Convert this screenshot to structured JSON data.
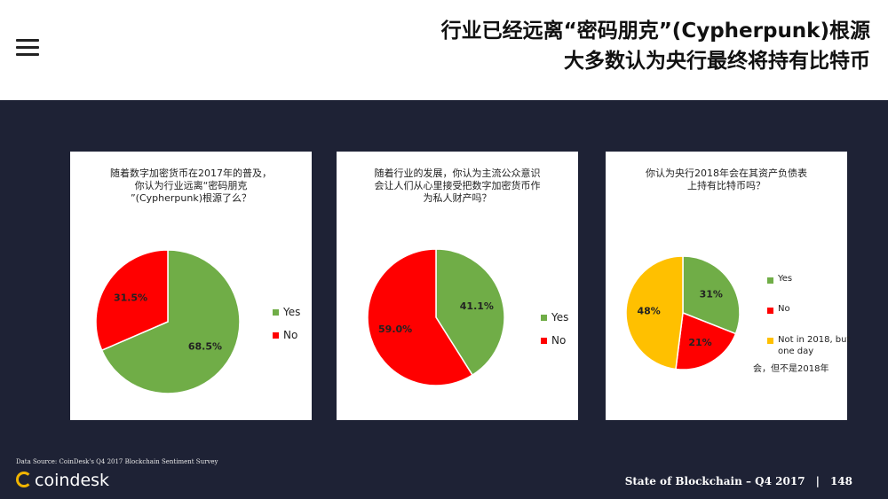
{
  "header": {
    "title_line1": "行业已经远离“密码朋克”(Cypherpunk)根源",
    "title_line2": "大多数认为央行最终将持有比特币"
  },
  "colors": {
    "yes": "#70ad47",
    "no": "#ff0000",
    "other": "#ffc000"
  },
  "chart_data": [
    {
      "type": "pie",
      "title": "随着数字加密货币在2017年的普及，\n你认为行业远离“密码朋克\n”(Cypherpunk)根源了么？",
      "slices": [
        {
          "label": "Yes",
          "value": 68.5,
          "display": "68.5%",
          "color": "#70ad47"
        },
        {
          "label": "No",
          "value": 31.5,
          "display": "31.5%",
          "color": "#ff0000"
        }
      ],
      "legend": [
        "Yes",
        "No"
      ],
      "legend_position": "right"
    },
    {
      "type": "pie",
      "title": "随着行业的发展，你认为主流公众意识\n会让人们从心里接受把数字加密货币作\n为私人财产吗？",
      "slices": [
        {
          "label": "Yes",
          "value": 41.1,
          "display": "41.1%",
          "color": "#70ad47"
        },
        {
          "label": "No",
          "value": 59.0,
          "display": "59.0%",
          "color": "#ff0000"
        }
      ],
      "legend": [
        "Yes",
        "No"
      ],
      "legend_position": "right"
    },
    {
      "type": "pie",
      "title": "你认为央行2018年会在其资产负债表\n上持有比特币吗？",
      "slices": [
        {
          "label": "Yes",
          "value": 31,
          "display": "31%",
          "color": "#70ad47"
        },
        {
          "label": "No",
          "value": 21,
          "display": "21%",
          "color": "#ff0000"
        },
        {
          "label": "Not in 2018, but one day",
          "value": 48,
          "display": "48%",
          "color": "#ffc000"
        }
      ],
      "legend": [
        "Yes",
        "No",
        "Not in 2018, but one day"
      ],
      "legend_note": "会，但不是2018年",
      "legend_position": "right"
    }
  ],
  "source": "Data Source: CoinDesk's Q4 2017 Blockchain Sentiment Survey",
  "brand": "coindesk",
  "footer": {
    "text": "State of Blockchain – Q4 2017",
    "separator": "|",
    "page": "148"
  }
}
